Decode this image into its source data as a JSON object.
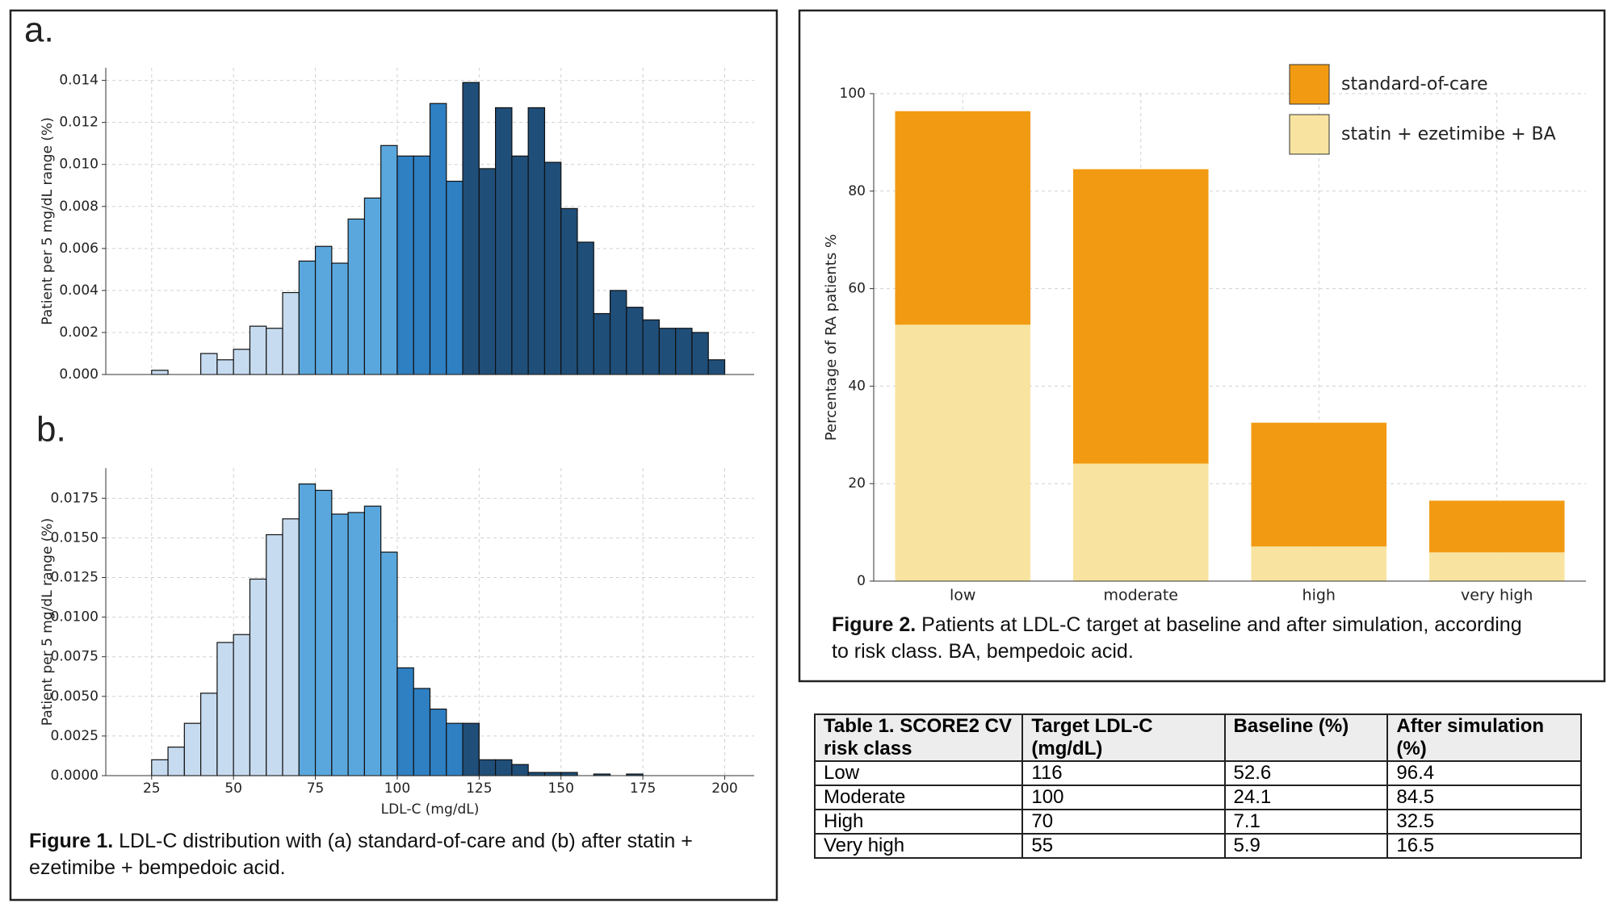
{
  "chart_data": [
    {
      "type": "histogram",
      "panel_label": "a.",
      "ylabel": "Patient per 5 mg/dL range (%)",
      "bins": [
        25,
        30,
        35,
        40,
        45,
        50,
        55,
        60,
        65,
        70,
        75,
        80,
        85,
        90,
        95,
        100,
        105,
        110,
        115,
        120,
        125,
        130,
        135,
        140,
        145,
        150,
        155,
        160,
        165,
        170,
        175,
        180,
        185,
        190,
        195,
        200
      ],
      "counts": [
        0.0002,
        0,
        0,
        0.001,
        0.0007,
        0.0012,
        0.0023,
        0.0022,
        0.0039,
        0.0054,
        0.0061,
        0.0053,
        0.0074,
        0.0084,
        0.0109,
        0.0104,
        0.0104,
        0.0129,
        0.0092,
        0.0139,
        0.0098,
        0.0127,
        0.0104,
        0.0127,
        0.0101,
        0.0079,
        0.0063,
        0.0029,
        0.004,
        0.0032,
        0.0026,
        0.0022,
        0.0022,
        0.002,
        0.0007
      ],
      "colors": [
        "#c6dbef",
        "#c6dbef",
        "#c6dbef",
        "#c6dbef",
        "#c6dbef",
        "#c6dbef",
        "#c6dbef",
        "#c6dbef",
        "#c6dbef",
        "#5aa7dd",
        "#5aa7dd",
        "#5aa7dd",
        "#5aa7dd",
        "#5aa7dd",
        "#5aa7dd",
        "#2f80c2",
        "#2f80c2",
        "#2f80c2",
        "#2f80c2",
        "#1f4e79",
        "#1f4e79",
        "#1f4e79",
        "#1f4e79",
        "#1f4e79",
        "#1f4e79",
        "#1f4e79",
        "#1f4e79",
        "#1f4e79",
        "#1f4e79",
        "#1f4e79",
        "#1f4e79",
        "#1f4e79",
        "#1f4e79",
        "#1f4e79",
        "#1f4e79"
      ],
      "xlim": [
        11,
        209
      ],
      "ylim": [
        0,
        0.0146
      ],
      "grid": true,
      "yticks": [
        {
          "value": 0,
          "label": "0.000"
        },
        {
          "value": 0.002,
          "label": "0.002"
        },
        {
          "value": 0.004,
          "label": "0.004"
        },
        {
          "value": 0.006,
          "label": "0.006"
        },
        {
          "value": 0.008,
          "label": "0.008"
        },
        {
          "value": 0.01,
          "label": "0.010"
        },
        {
          "value": 0.012,
          "label": "0.012"
        },
        {
          "value": 0.014,
          "label": "0.014"
        }
      ]
    },
    {
      "type": "histogram",
      "panel_label": "b.",
      "ylabel": "Patient per 5 mg/dL range (%)",
      "xlabel": "LDL-C (mg/dL)",
      "bins": [
        25,
        30,
        35,
        40,
        45,
        50,
        55,
        60,
        65,
        70,
        75,
        80,
        85,
        90,
        95,
        100,
        105,
        110,
        115,
        120,
        125,
        130,
        135,
        140,
        145,
        150,
        155,
        160,
        165,
        170,
        175
      ],
      "counts": [
        0.001,
        0.0018,
        0.0033,
        0.0052,
        0.0084,
        0.0089,
        0.0124,
        0.0152,
        0.0162,
        0.0184,
        0.018,
        0.0165,
        0.0166,
        0.017,
        0.0141,
        0.0068,
        0.0055,
        0.0042,
        0.0033,
        0.0033,
        0.001,
        0.001,
        0.0007,
        0.0002,
        0.0002,
        0.0002,
        0,
        0.0001,
        0,
        0.0001
      ],
      "colors": [
        "#c6dbef",
        "#c6dbef",
        "#c6dbef",
        "#c6dbef",
        "#c6dbef",
        "#c6dbef",
        "#c6dbef",
        "#c6dbef",
        "#c6dbef",
        "#5aa7dd",
        "#5aa7dd",
        "#5aa7dd",
        "#5aa7dd",
        "#5aa7dd",
        "#5aa7dd",
        "#2f80c2",
        "#2f80c2",
        "#2f80c2",
        "#2f80c2",
        "#1f4e79",
        "#1f4e79",
        "#1f4e79",
        "#1f4e79",
        "#1f4e79",
        "#1f4e79",
        "#1f4e79",
        "#1f4e79",
        "#1f4e79",
        "#1f4e79",
        "#1f4e79"
      ],
      "xlim": [
        11,
        209
      ],
      "ylim": [
        0,
        0.0194
      ],
      "grid": true,
      "xticks": [
        25,
        50,
        75,
        100,
        125,
        150,
        175,
        200
      ],
      "yticks": [
        {
          "value": 0,
          "label": "0.0000"
        },
        {
          "value": 0.0025,
          "label": "0.0025"
        },
        {
          "value": 0.005,
          "label": "0.0050"
        },
        {
          "value": 0.0075,
          "label": "0.0075"
        },
        {
          "value": 0.01,
          "label": "0.0100"
        },
        {
          "value": 0.0125,
          "label": "0.0125"
        },
        {
          "value": 0.015,
          "label": "0.0150"
        },
        {
          "value": 0.0175,
          "label": "0.0175"
        }
      ]
    },
    {
      "type": "stacked_bar",
      "ylabel": "Percentage of RA patients %",
      "categories": [
        "low",
        "moderate",
        "high",
        "very high"
      ],
      "series": [
        {
          "name": "statin + ezetimibe + BA",
          "color": "#f8e4a0",
          "values": [
            52.6,
            24.1,
            7.1,
            5.9
          ]
        },
        {
          "name": "standard-of-care",
          "color": "#f29b12",
          "values": [
            43.8,
            60.4,
            25.4,
            10.6
          ]
        }
      ],
      "ylim": [
        0,
        100
      ],
      "yticks": [
        0,
        20,
        40,
        60,
        80,
        100
      ],
      "grid": true,
      "legend": "upper right"
    }
  ],
  "figure1_caption": {
    "label": "Figure 1.",
    "text": "LDL-C distribution with (a) standard-of-care and (b) after statin + ezetimibe + bempedoic acid."
  },
  "figure2_caption": {
    "label": "Figure 2.",
    "text": "Patients at LDL-C target at baseline and after simulation, according to risk class. BA, bempedoic acid."
  },
  "table": {
    "header": [
      "Table 1. SCORE2 CV risk class",
      "Target LDL-C (mg/dL)",
      "Baseline (%)",
      "After simulation (%)"
    ],
    "rows": [
      [
        "Low",
        "116",
        "52.6",
        "96.4"
      ],
      [
        "Moderate",
        "100",
        "24.1",
        "84.5"
      ],
      [
        "High",
        "70",
        "7.1",
        "32.5"
      ],
      [
        "Very high",
        "55",
        "5.9",
        "16.5"
      ]
    ]
  }
}
